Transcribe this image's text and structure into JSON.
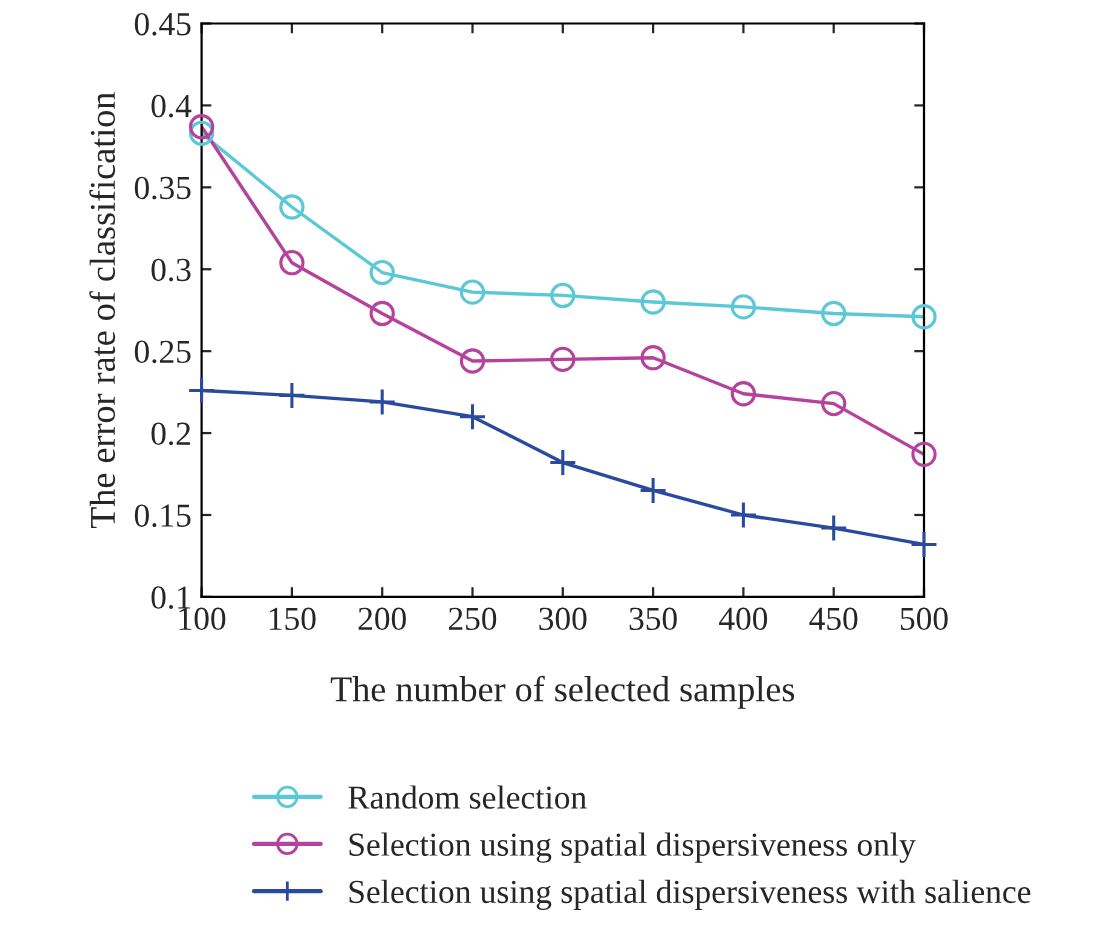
{
  "chart_data": {
    "type": "line",
    "xlabel": "The number of selected samples",
    "ylabel": "The error rate of classification",
    "x": [
      100,
      150,
      200,
      250,
      300,
      350,
      400,
      450,
      500
    ],
    "series": [
      {
        "name": "Random selection",
        "color": "#5bc8d6",
        "marker": "circle",
        "values": [
          0.383,
          0.338,
          0.298,
          0.286,
          0.284,
          0.28,
          0.277,
          0.273,
          0.271
        ]
      },
      {
        "name": "Selection using spatial dispersiveness only",
        "color": "#b5439e",
        "marker": "circle",
        "values": [
          0.387,
          0.304,
          0.273,
          0.244,
          0.245,
          0.246,
          0.224,
          0.218,
          0.187
        ]
      },
      {
        "name": "Selection using spatial dispersiveness with salience",
        "color": "#2a4a9e",
        "marker": "cross",
        "values": [
          0.226,
          0.223,
          0.219,
          0.21,
          0.182,
          0.165,
          0.15,
          0.142,
          0.132
        ]
      }
    ],
    "xlim": [
      100,
      500
    ],
    "xticks": [
      100,
      150,
      200,
      250,
      300,
      350,
      400,
      450,
      500
    ],
    "ylim": [
      0.1,
      0.45
    ],
    "yticks": [
      0.1,
      0.15,
      0.2,
      0.25,
      0.3,
      0.35,
      0.4,
      0.45
    ],
    "grid": false,
    "legend": "bottom",
    "line_style": "solid"
  }
}
